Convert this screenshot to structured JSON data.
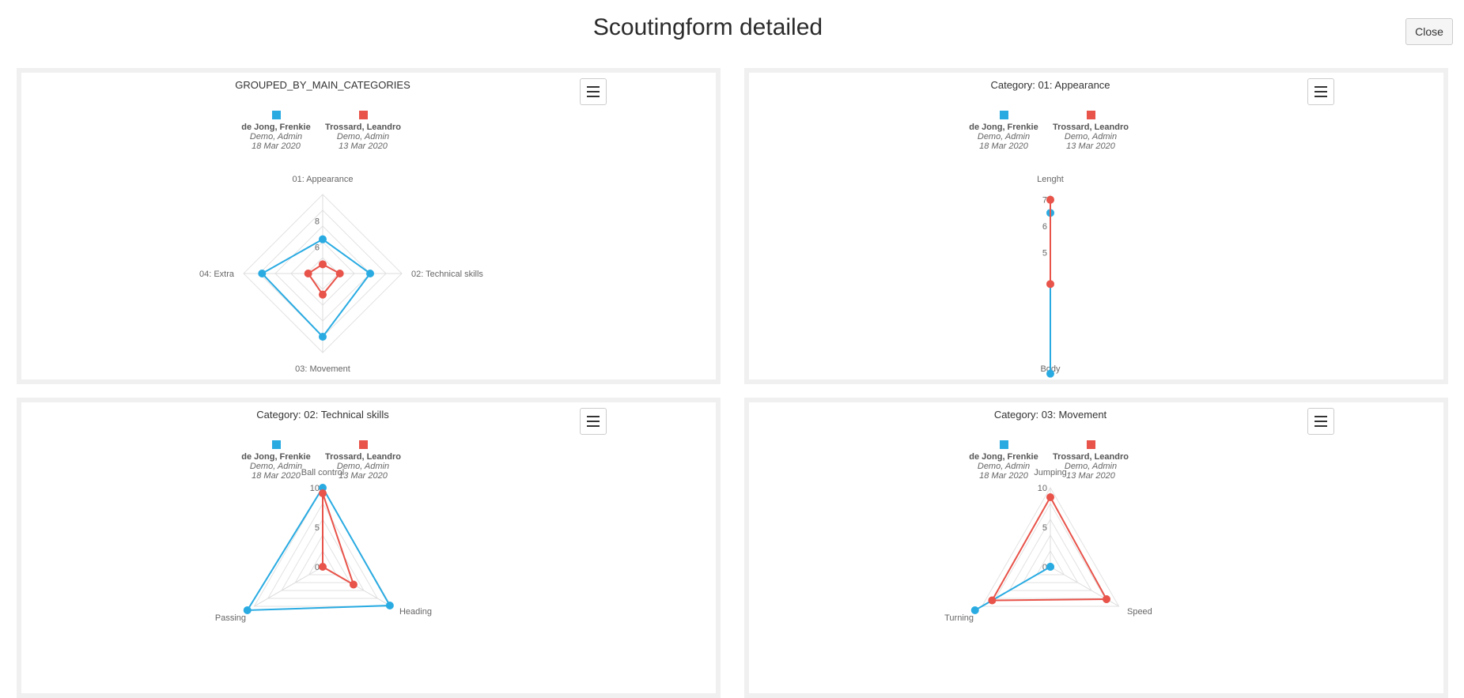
{
  "page": {
    "title": "Scoutingform detailed",
    "close_label": "Close"
  },
  "legend": [
    {
      "name": "de Jong, Frenkie",
      "author": "Demo, Admin",
      "date": "18 Mar 2020",
      "color": "#29abe2"
    },
    {
      "name": "Trossard, Leandro",
      "author": "Demo, Admin",
      "date": "13 Mar 2020",
      "color": "#e8534a"
    }
  ],
  "chart_data": [
    {
      "type": "radar",
      "title": "GROUPED_BY_MAIN_CATEGORIES",
      "title_prefix": "",
      "axes": [
        "01: Appearance",
        "02: Technical skills",
        "03: Movement",
        "04: Extra"
      ],
      "radial_range": [
        4,
        10
      ],
      "ticks": [
        6,
        8
      ],
      "series": [
        {
          "name": "de Jong, Frenkie",
          "values": [
            6.6,
            7.6,
            8.8,
            8.6
          ]
        },
        {
          "name": "Trossard, Leandro",
          "values": [
            4.7,
            5.3,
            5.6,
            5.1
          ]
        }
      ]
    },
    {
      "type": "radar",
      "title": "01: Appearance",
      "title_prefix": "Category: ",
      "axes": [
        "Lenght",
        "Body"
      ],
      "radial_range": [
        4.2,
        7.2
      ],
      "ticks": [
        5,
        6,
        7
      ],
      "series": [
        {
          "name": "de Jong, Frenkie",
          "values": [
            6.5,
            8.0
          ]
        },
        {
          "name": "Trossard, Leandro",
          "values": [
            7.0,
            4.6
          ]
        }
      ]
    },
    {
      "type": "radar",
      "title": "02: Technical skills",
      "title_prefix": "Category: ",
      "axes": [
        "Ball control",
        "Heading",
        "Passing"
      ],
      "radial_range": [
        0,
        10
      ],
      "ticks": [
        0,
        5,
        10
      ],
      "series": [
        {
          "name": "de Jong, Frenkie",
          "values": [
            10,
            9.8,
            11
          ]
        },
        {
          "name": "Trossard, Leandro",
          "values": [
            9.3,
            4.5,
            0
          ]
        }
      ]
    },
    {
      "type": "radar",
      "title": "03: Movement",
      "title_prefix": "Category: ",
      "axes": [
        "Jumping",
        "Speed",
        "Turning"
      ],
      "radial_range": [
        0,
        10
      ],
      "ticks": [
        0,
        5,
        10
      ],
      "series": [
        {
          "name": "de Jong, Frenkie",
          "values": [
            0,
            0,
            11
          ]
        },
        {
          "name": "Trossard, Leandro",
          "values": [
            8.8,
            8.2,
            8.5
          ]
        }
      ]
    }
  ]
}
